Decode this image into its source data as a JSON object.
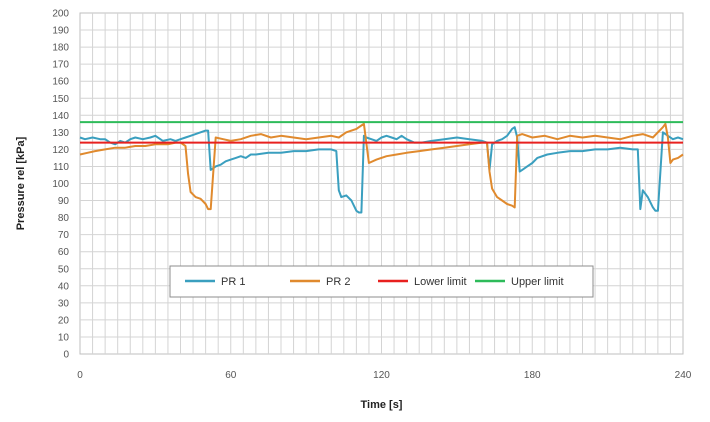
{
  "chart_data": {
    "type": "line",
    "xlabel": "Time [s]",
    "ylabel": "Pressure rel [kPa]",
    "xlim": [
      0,
      240
    ],
    "ylim": [
      0,
      200
    ],
    "x_ticks": [
      0,
      60,
      120,
      180,
      240
    ],
    "y_ticks": [
      0,
      10,
      20,
      30,
      40,
      50,
      60,
      70,
      80,
      90,
      100,
      110,
      120,
      130,
      140,
      150,
      160,
      170,
      180,
      190,
      200
    ],
    "grid": true,
    "legend_position": "lower-center",
    "series": [
      {
        "name": "PR 1",
        "color": "#3a9fbf",
        "x": [
          0,
          2,
          5,
          8,
          10,
          12,
          14,
          16,
          18,
          20,
          22,
          25,
          28,
          30,
          33,
          36,
          38,
          40,
          42,
          44,
          46,
          48,
          50,
          51,
          52,
          54,
          56,
          58,
          60,
          62,
          64,
          66,
          68,
          70,
          75,
          80,
          85,
          90,
          95,
          100,
          102,
          103,
          104,
          106,
          108,
          110,
          111,
          112,
          113,
          114,
          116,
          118,
          120,
          122,
          124,
          126,
          128,
          130,
          133,
          136,
          140,
          145,
          150,
          155,
          160,
          162,
          163,
          164,
          166,
          168,
          170,
          172,
          173,
          174,
          175,
          176,
          178,
          180,
          182,
          186,
          190,
          195,
          200,
          205,
          210,
          215,
          220,
          222,
          223,
          224,
          226,
          228,
          229,
          230,
          232,
          234,
          236,
          238,
          240
        ],
        "values": [
          127,
          126,
          127,
          126,
          126,
          124,
          123,
          125,
          124,
          126,
          127,
          126,
          127,
          128,
          125,
          126,
          125,
          126,
          127,
          128,
          129,
          130,
          131,
          131,
          108,
          110,
          111,
          113,
          114,
          115,
          116,
          115,
          117,
          117,
          118,
          118,
          119,
          119,
          120,
          120,
          119,
          96,
          92,
          93,
          90,
          84,
          83,
          83,
          128,
          127,
          126,
          125,
          127,
          128,
          127,
          126,
          128,
          126,
          124,
          124,
          125,
          126,
          127,
          126,
          125,
          124,
          108,
          123,
          125,
          126,
          128,
          132,
          133,
          127,
          107,
          108,
          110,
          112,
          115,
          117,
          118,
          119,
          119,
          120,
          120,
          121,
          120,
          120,
          85,
          96,
          92,
          86,
          84,
          84,
          130,
          128,
          126,
          127,
          126
        ]
      },
      {
        "name": "PR 2",
        "color": "#e08a2e",
        "x": [
          0,
          3,
          6,
          10,
          14,
          18,
          22,
          26,
          30,
          35,
          38,
          40,
          42,
          43,
          44,
          46,
          48,
          50,
          51,
          52,
          54,
          57,
          60,
          64,
          68,
          72,
          76,
          80,
          85,
          90,
          95,
          100,
          103,
          106,
          110,
          112,
          113,
          115,
          118,
          122,
          126,
          130,
          135,
          140,
          145,
          150,
          155,
          160,
          162,
          163,
          164,
          166,
          168,
          170,
          172,
          173,
          174,
          176,
          180,
          185,
          190,
          195,
          200,
          205,
          210,
          215,
          220,
          224,
          228,
          230,
          232,
          233,
          234,
          235,
          236,
          238,
          240
        ],
        "values": [
          117,
          118,
          119,
          120,
          121,
          121,
          122,
          122,
          123,
          123,
          124,
          124,
          122,
          106,
          95,
          92,
          91,
          88,
          85,
          85,
          127,
          126,
          125,
          126,
          128,
          129,
          127,
          128,
          127,
          126,
          127,
          128,
          127,
          130,
          132,
          134,
          135,
          112,
          114,
          116,
          117,
          118,
          119,
          120,
          121,
          122,
          123,
          124,
          124,
          107,
          97,
          92,
          90,
          88,
          87,
          86,
          128,
          129,
          127,
          128,
          126,
          128,
          127,
          128,
          127,
          126,
          128,
          129,
          127,
          130,
          133,
          135,
          127,
          112,
          114,
          115,
          117
        ]
      },
      {
        "name": "Lower limit",
        "color": "#e8201f",
        "x": [
          0,
          240
        ],
        "values": [
          124,
          124
        ]
      },
      {
        "name": "Upper limit",
        "color": "#2ebb5a",
        "x": [
          0,
          240
        ],
        "values": [
          136,
          136
        ]
      }
    ]
  }
}
